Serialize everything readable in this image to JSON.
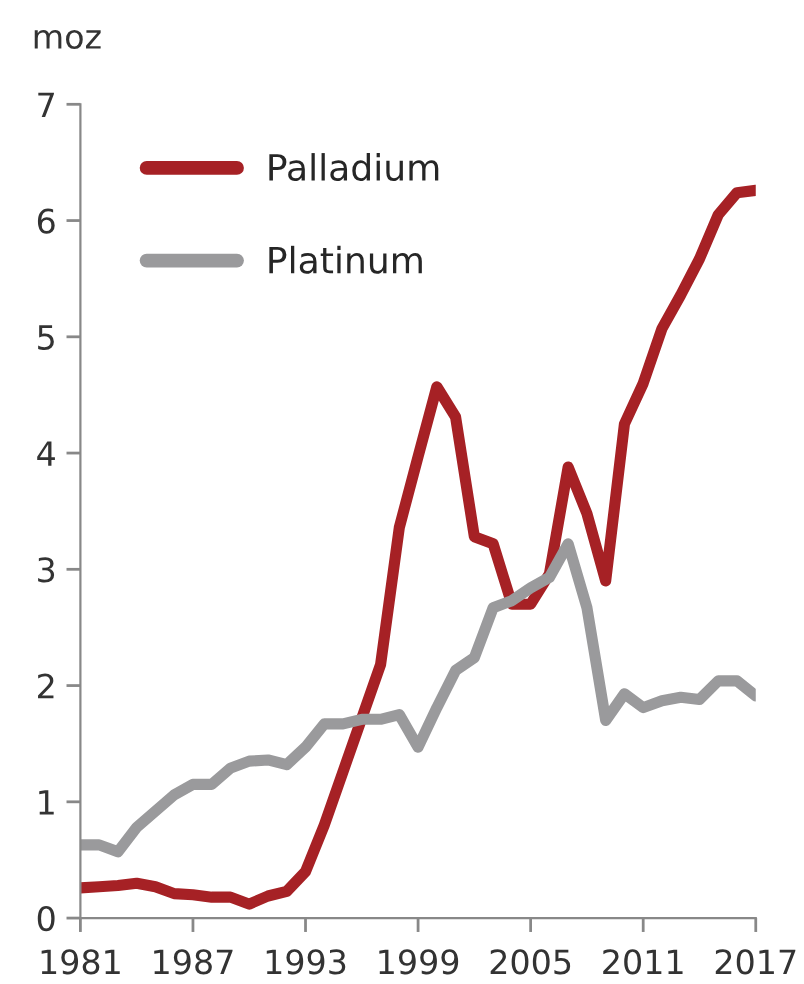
{
  "chart_data": {
    "type": "line",
    "ylabel": "moz",
    "x": [
      1981,
      1982,
      1983,
      1984,
      1985,
      1986,
      1987,
      1988,
      1989,
      1990,
      1991,
      1992,
      1993,
      1994,
      1995,
      1996,
      1997,
      1998,
      1999,
      2000,
      2001,
      2002,
      2003,
      2004,
      2005,
      2006,
      2007,
      2008,
      2009,
      2010,
      2011,
      2012,
      2013,
      2014,
      2015,
      2016,
      2017
    ],
    "series": [
      {
        "name": "Palladium",
        "color": "#a62125",
        "values": [
          0.26,
          0.27,
          0.28,
          0.3,
          0.27,
          0.21,
          0.2,
          0.18,
          0.18,
          0.12,
          0.19,
          0.23,
          0.4,
          0.8,
          1.26,
          1.72,
          2.18,
          3.36,
          3.97,
          4.57,
          4.31,
          3.28,
          3.22,
          2.7,
          2.7,
          2.96,
          3.88,
          3.48,
          2.9,
          4.25,
          4.6,
          5.07,
          5.36,
          5.67,
          6.05,
          6.24,
          6.26
        ]
      },
      {
        "name": "Platinum",
        "color": "#9a9a9c",
        "values": [
          0.63,
          0.63,
          0.57,
          0.78,
          0.92,
          1.06,
          1.15,
          1.15,
          1.29,
          1.35,
          1.36,
          1.32,
          1.47,
          1.67,
          1.67,
          1.71,
          1.71,
          1.75,
          1.47,
          1.81,
          2.13,
          2.24,
          2.67,
          2.73,
          2.84,
          2.93,
          3.22,
          2.67,
          1.7,
          1.93,
          1.81,
          1.87,
          1.9,
          1.88,
          2.04,
          2.04,
          1.91
        ]
      }
    ],
    "xlim": [
      1981,
      2017
    ],
    "xticks": [
      1981,
      1987,
      1993,
      1999,
      2005,
      2011,
      2017
    ],
    "ylim": [
      0,
      7
    ],
    "yticks": [
      0,
      1,
      2,
      3,
      4,
      5,
      6,
      7
    ],
    "grid": false,
    "legend": "top left",
    "marker": "none",
    "line_style": "solid"
  }
}
